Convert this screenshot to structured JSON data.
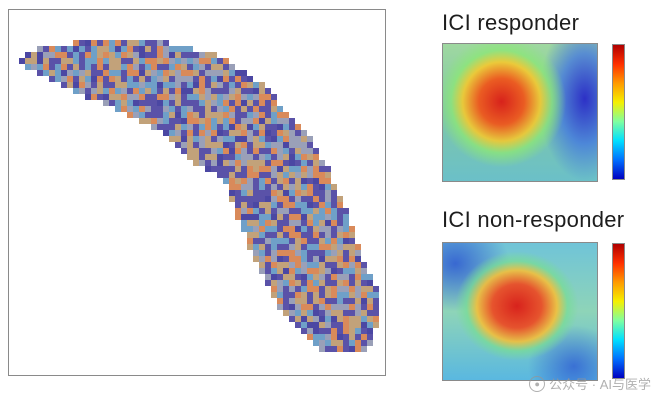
{
  "panels": {
    "responder": {
      "title": "ICI responder",
      "hotspot_color": "#e02a1a"
    },
    "non_responder": {
      "title": "ICI non-responder",
      "hotspot_color": "#e02a1a"
    }
  },
  "colorbar": {
    "stops": [
      "#b00000",
      "#ff3000",
      "#ff9a00",
      "#f5f000",
      "#7fffa0",
      "#00e0ff",
      "#0070ff",
      "#0000c0"
    ]
  },
  "tissue": {
    "tile_colors": [
      "#5a52a8",
      "#c2a27a",
      "#6fa0c8",
      "#d98a5a",
      "#9aa0b8",
      "#4b47a3"
    ]
  },
  "watermark": {
    "text": "公众号 · AI与医学",
    "icon": "wechat-icon"
  }
}
